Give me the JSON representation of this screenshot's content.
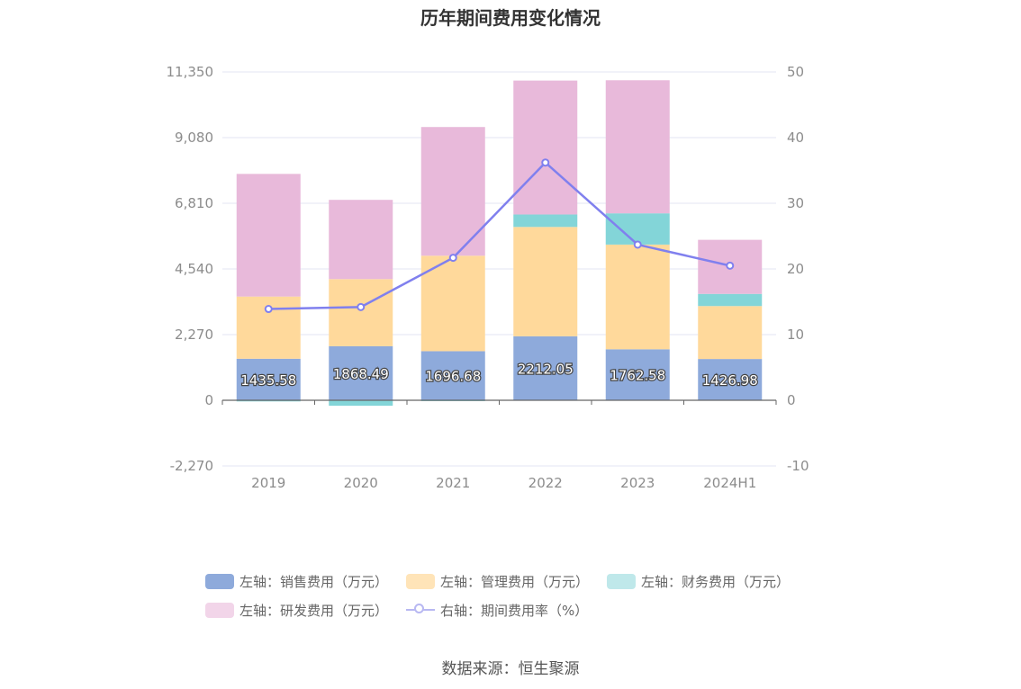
{
  "title": "历年期间费用变化情况",
  "source": "数据来源：恒生聚源",
  "chart_data": {
    "type": "bar",
    "stacked": true,
    "categories": [
      "2019",
      "2020",
      "2021",
      "2022",
      "2023",
      "2024H1"
    ],
    "left_axis": {
      "ticks": [
        "11,350",
        "9,080",
        "6,810",
        "4,540",
        "2,270",
        "0",
        "-2,270"
      ],
      "ylim": [
        -2270,
        11350
      ]
    },
    "right_axis": {
      "ticks": [
        "50",
        "40",
        "30",
        "20",
        "10",
        "0",
        "-10"
      ],
      "ylim": [
        -10,
        50
      ]
    },
    "series": [
      {
        "name": "左轴：销售费用（万元）",
        "color": "#8eaadb",
        "axis": "left",
        "values": [
          1435.58,
          1868.49,
          1696.68,
          2212.05,
          1762.58,
          1426.98
        ],
        "labels": [
          "1435.58",
          "1868.49",
          "1696.68",
          "2212.05",
          "1762.58",
          "1426.98"
        ]
      },
      {
        "name": "左轴：管理费用（万元）",
        "color": "#ffd99b",
        "axis": "left",
        "values": [
          2150,
          2320,
          3300,
          3780,
          3620,
          1830
        ]
      },
      {
        "name": "左轴：财务费用（万元）",
        "color": "#83d5d8",
        "axis": "left",
        "values": [
          -40,
          -190,
          -30,
          430,
          1080,
          420
        ]
      },
      {
        "name": "左轴：研发费用（万元）",
        "color": "#e8b9da",
        "axis": "left",
        "values": [
          4240,
          2740,
          4450,
          4630,
          4600,
          1870
        ]
      },
      {
        "name": "右轴：期间费用率（%）",
        "color": "#8080ee",
        "axis": "right",
        "type": "line",
        "values": [
          13.9,
          14.2,
          21.7,
          36.2,
          23.7,
          20.5
        ]
      }
    ],
    "legend_position": "bottom",
    "grid": true
  }
}
